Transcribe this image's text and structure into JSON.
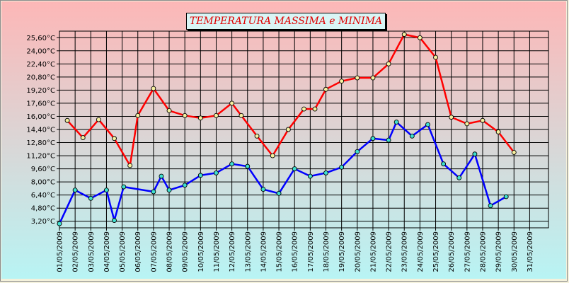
{
  "chart_data": {
    "type": "line",
    "title": "TEMPERATURA MASSIMA e MINIMA",
    "xlabel": "",
    "ylabel": "",
    "ylim": [
      2.4,
      26.4
    ],
    "ytick_values": [
      3.2,
      4.8,
      6.4,
      8.0,
      9.6,
      11.2,
      12.8,
      14.4,
      16.0,
      17.6,
      19.2,
      20.8,
      22.4,
      24.0,
      25.6
    ],
    "ytick_labels": [
      "3,20°C",
      "4,80°C",
      "6,40°C",
      "8,00°C",
      "9,60°C",
      "11,20°C",
      "12,80°C",
      "14,40°C",
      "16,00°C",
      "17,60°C",
      "19,20°C",
      "20,80°C",
      "22,40°C",
      "24,00°C",
      "25,60°C"
    ],
    "x_labels": [
      "01/05/2009",
      "02/05/2009",
      "03/05/2009",
      "04/05/2009",
      "05/05/2009",
      "06/05/2009",
      "07/05/2009",
      "08/05/2009",
      "09/05/2009",
      "10/05/2009",
      "11/05/2009",
      "12/05/2009",
      "13/05/2009",
      "14/05/2009",
      "15/05/2009",
      "16/05/2009",
      "17/05/2009",
      "18/05/2009",
      "19/05/2009",
      "20/05/2009",
      "21/05/2009",
      "22/05/2009",
      "23/05/2009",
      "24/05/2009",
      "25/05/2009",
      "26/05/2009",
      "27/05/2009",
      "28/05/2009",
      "29/05/2009",
      "30/05/2009",
      "31/05/2009"
    ],
    "x_range": [
      1,
      32.2
    ],
    "grid": true,
    "series": [
      {
        "color": "#ff0000",
        "marker_fill": "#f6f0a0",
        "points": [
          {
            "x": 1.5,
            "y": 15.5
          },
          {
            "x": 2.5,
            "y": 13.4
          },
          {
            "x": 3.5,
            "y": 15.6
          },
          {
            "x": 4.5,
            "y": 13.3
          },
          {
            "x": 5.5,
            "y": 10.0
          },
          {
            "x": 6.0,
            "y": 16.1
          },
          {
            "x": 7.0,
            "y": 19.4
          },
          {
            "x": 8.0,
            "y": 16.7
          },
          {
            "x": 9.0,
            "y": 16.1
          },
          {
            "x": 10.0,
            "y": 15.8
          },
          {
            "x": 11.0,
            "y": 16.1
          },
          {
            "x": 12.0,
            "y": 17.6
          },
          {
            "x": 12.6,
            "y": 16.1
          },
          {
            "x": 13.6,
            "y": 13.6
          },
          {
            "x": 14.6,
            "y": 11.2
          },
          {
            "x": 15.6,
            "y": 14.4
          },
          {
            "x": 16.6,
            "y": 16.9
          },
          {
            "x": 17.3,
            "y": 16.9
          },
          {
            "x": 18.0,
            "y": 19.3
          },
          {
            "x": 19.0,
            "y": 20.3
          },
          {
            "x": 20.0,
            "y": 20.7
          },
          {
            "x": 21.0,
            "y": 20.7
          },
          {
            "x": 22.0,
            "y": 22.4
          },
          {
            "x": 23.0,
            "y": 26.0
          },
          {
            "x": 24.0,
            "y": 25.6
          },
          {
            "x": 25.0,
            "y": 23.2
          },
          {
            "x": 26.0,
            "y": 15.9
          },
          {
            "x": 27.0,
            "y": 15.1
          },
          {
            "x": 28.0,
            "y": 15.5
          },
          {
            "x": 29.0,
            "y": 14.1
          },
          {
            "x": 30.0,
            "y": 11.6
          }
        ]
      },
      {
        "color": "#0000ff",
        "marker_fill": "#40e0d0",
        "points": [
          {
            "x": 1.0,
            "y": 2.9
          },
          {
            "x": 2.0,
            "y": 7.0
          },
          {
            "x": 3.0,
            "y": 6.0
          },
          {
            "x": 4.0,
            "y": 7.0
          },
          {
            "x": 4.5,
            "y": 3.3
          },
          {
            "x": 5.1,
            "y": 7.4
          },
          {
            "x": 7.0,
            "y": 6.8
          },
          {
            "x": 7.5,
            "y": 8.7
          },
          {
            "x": 8.0,
            "y": 7.0
          },
          {
            "x": 9.0,
            "y": 7.6
          },
          {
            "x": 10.0,
            "y": 8.8
          },
          {
            "x": 11.0,
            "y": 9.1
          },
          {
            "x": 12.0,
            "y": 10.2
          },
          {
            "x": 13.0,
            "y": 9.9
          },
          {
            "x": 14.0,
            "y": 7.1
          },
          {
            "x": 15.0,
            "y": 6.6
          },
          {
            "x": 16.0,
            "y": 9.6
          },
          {
            "x": 17.0,
            "y": 8.7
          },
          {
            "x": 18.0,
            "y": 9.1
          },
          {
            "x": 19.0,
            "y": 9.8
          },
          {
            "x": 20.0,
            "y": 11.7
          },
          {
            "x": 21.0,
            "y": 13.3
          },
          {
            "x": 22.0,
            "y": 13.1
          },
          {
            "x": 22.5,
            "y": 15.3
          },
          {
            "x": 23.5,
            "y": 13.6
          },
          {
            "x": 24.5,
            "y": 15.0
          },
          {
            "x": 25.5,
            "y": 10.2
          },
          {
            "x": 26.5,
            "y": 8.5
          },
          {
            "x": 27.5,
            "y": 11.4
          },
          {
            "x": 28.5,
            "y": 5.1
          },
          {
            "x": 29.5,
            "y": 6.2
          }
        ]
      }
    ]
  }
}
